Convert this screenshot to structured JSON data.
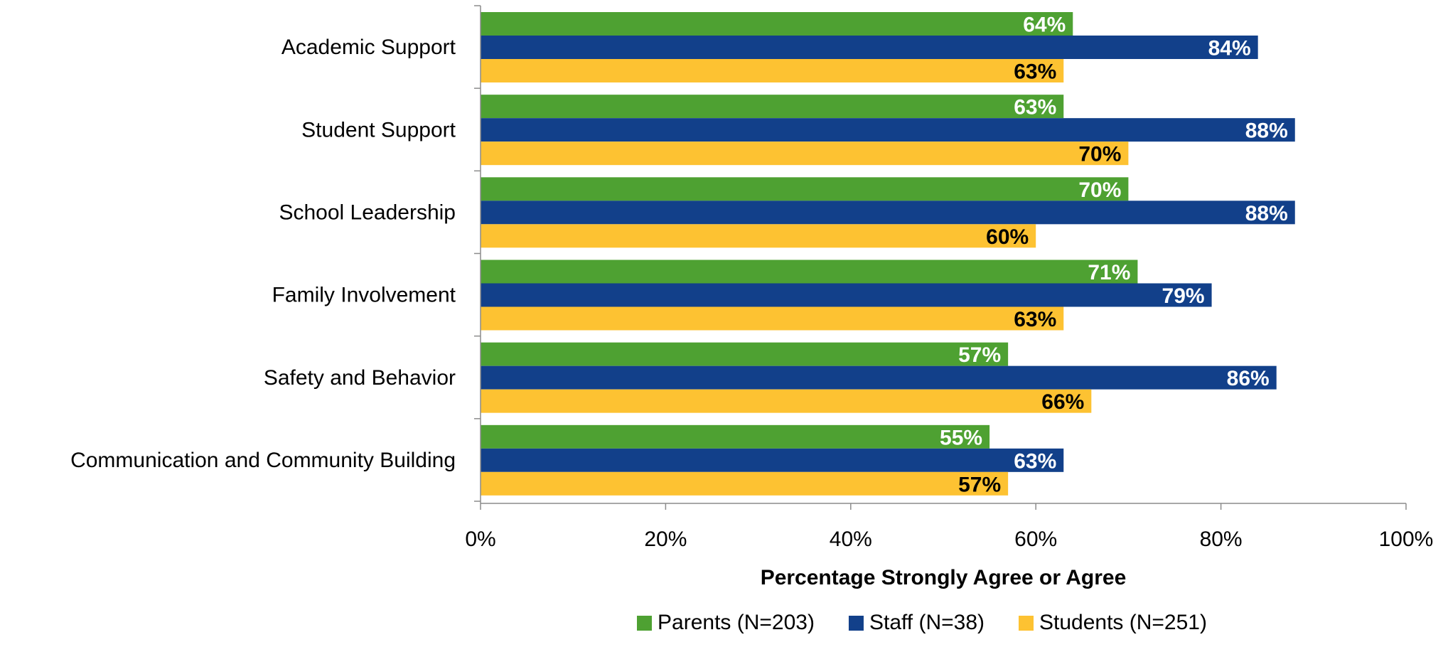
{
  "chart_data": {
    "type": "bar",
    "orientation": "horizontal",
    "categories": [
      "Academic Support",
      "Student Support",
      "School Leadership",
      "Family Involvement",
      "Safety and Behavior",
      "Communication and Community Building"
    ],
    "series": [
      {
        "name": "Parents (N=203)",
        "color": "#4EA132",
        "label_color": "#FFFFFF",
        "values": [
          64,
          63,
          70,
          71,
          57,
          55
        ],
        "labels": [
          "64%",
          "63%",
          "70%",
          "71%",
          "57%",
          "55%"
        ]
      },
      {
        "name": "Staff (N=38)",
        "color": "#12408A",
        "label_color": "#FFFFFF",
        "values": [
          84,
          88,
          88,
          79,
          86,
          63
        ],
        "labels": [
          "84%",
          "88%",
          "88%",
          "79%",
          "86%",
          "63%"
        ]
      },
      {
        "name": "Students (N=251)",
        "color": "#FDC232",
        "label_color": "#000000",
        "values": [
          63,
          70,
          60,
          63,
          66,
          57
        ],
        "labels": [
          "63%",
          "70%",
          "60%",
          "63%",
          "66%",
          "57%"
        ]
      }
    ],
    "xlim": [
      0,
      100
    ],
    "xticks": [
      0,
      20,
      40,
      60,
      80,
      100
    ],
    "xtick_labels": [
      "0%",
      "20%",
      "40%",
      "60%",
      "80%",
      "100%"
    ],
    "xlabel": "Percentage Strongly Agree or Agree",
    "legend_position": "bottom",
    "grid": false
  }
}
